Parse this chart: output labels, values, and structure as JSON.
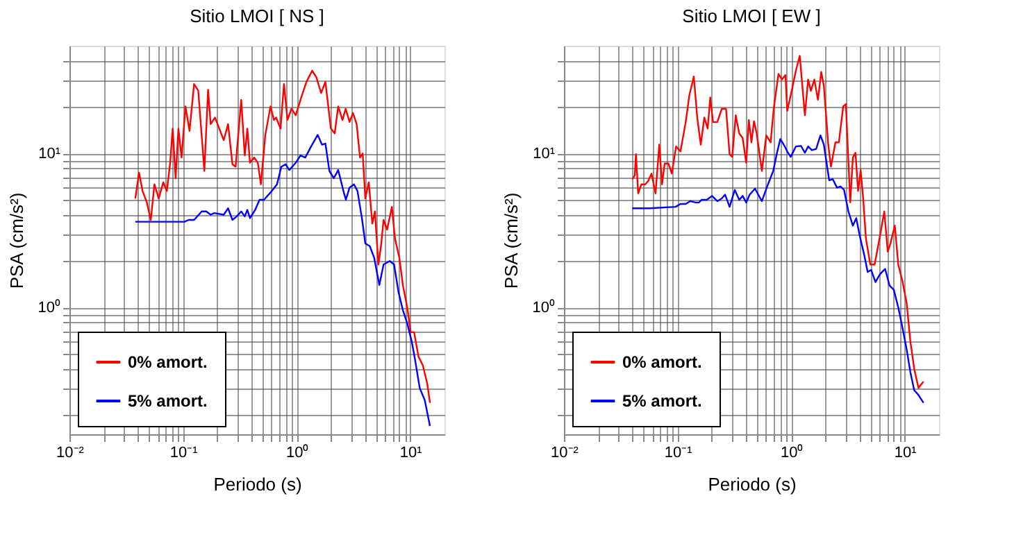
{
  "chart_data": [
    {
      "type": "line",
      "title": "Sitio LMOI [ NS ]",
      "xlabel": "Periodo (s)",
      "ylabel": "PSA (cm/s²)",
      "log": "xy",
      "grid": true,
      "legend": "bottom left",
      "xlim": [
        0.01,
        20
      ],
      "ylim": [
        0.15,
        50
      ],
      "xticks": [
        {
          "value": 0.01,
          "label": "10⁻²"
        },
        {
          "value": 0.02,
          "label": null
        },
        {
          "value": 0.03,
          "label": null
        },
        {
          "value": 0.04,
          "label": null
        },
        {
          "value": 0.05,
          "label": null
        },
        {
          "value": 0.06,
          "label": null
        },
        {
          "value": 0.07,
          "label": null
        },
        {
          "value": 0.08,
          "label": null
        },
        {
          "value": 0.09,
          "label": null
        },
        {
          "value": 0.1,
          "label": "10⁻¹"
        },
        {
          "value": 0.2,
          "label": null
        },
        {
          "value": 0.3,
          "label": null
        },
        {
          "value": 0.4,
          "label": null
        },
        {
          "value": 0.5,
          "label": null
        },
        {
          "value": 0.6,
          "label": null
        },
        {
          "value": 0.7,
          "label": null
        },
        {
          "value": 0.8,
          "label": null
        },
        {
          "value": 0.9,
          "label": null
        },
        {
          "value": 1,
          "label": "10⁰"
        },
        {
          "value": 2,
          "label": null
        },
        {
          "value": 3,
          "label": null
        },
        {
          "value": 4,
          "label": null
        },
        {
          "value": 5,
          "label": null
        },
        {
          "value": 6,
          "label": null
        },
        {
          "value": 7,
          "label": null
        },
        {
          "value": 8,
          "label": null
        },
        {
          "value": 9,
          "label": null
        },
        {
          "value": 10,
          "label": "10¹"
        }
      ],
      "yticks": [
        {
          "value": 0.2,
          "label": null
        },
        {
          "value": 0.3,
          "label": null
        },
        {
          "value": 0.4,
          "label": null
        },
        {
          "value": 0.5,
          "label": null
        },
        {
          "value": 0.6,
          "label": null
        },
        {
          "value": 0.7,
          "label": null
        },
        {
          "value": 0.8,
          "label": null
        },
        {
          "value": 0.9,
          "label": null
        },
        {
          "value": 1,
          "label": "10⁰"
        },
        {
          "value": 2,
          "label": null
        },
        {
          "value": 3,
          "label": null
        },
        {
          "value": 4,
          "label": null
        },
        {
          "value": 5,
          "label": null
        },
        {
          "value": 6,
          "label": null
        },
        {
          "value": 7,
          "label": null
        },
        {
          "value": 8,
          "label": null
        },
        {
          "value": 9,
          "label": null
        },
        {
          "value": 10,
          "label": "10¹"
        },
        {
          "value": 20,
          "label": null
        },
        {
          "value": 30,
          "label": null
        },
        {
          "value": 40,
          "label": null
        }
      ],
      "series": [
        {
          "name": "0% amort.",
          "color": "#ff0000",
          "x": [
            0.038,
            0.041,
            0.044,
            0.048,
            0.052,
            0.056,
            0.061,
            0.067,
            0.072,
            0.077,
            0.081,
            0.086,
            0.091,
            0.097,
            0.105,
            0.114,
            0.125,
            0.136,
            0.154,
            0.166,
            0.175,
            0.191,
            0.228,
            0.249,
            0.272,
            0.29,
            0.325,
            0.349,
            0.368,
            0.388,
            0.423,
            0.455,
            0.484,
            0.529,
            0.588,
            0.631,
            0.659,
            0.721,
            0.773,
            0.83,
            0.899,
            0.982,
            1.08,
            1.22,
            1.37,
            1.49,
            1.64,
            1.79,
            2.0,
            2.16,
            2.32,
            2.53,
            2.7,
            2.92,
            3.13,
            3.37,
            3.61,
            3.81,
            4.02,
            4.31,
            4.63,
            4.88,
            5.24,
            5.52,
            5.82,
            6.25,
            6.89,
            7.33,
            8.01,
            8.6,
            9.4,
            10.1,
            10.8,
            11.8,
            12.9,
            14.1,
            14.9
          ],
          "values": [
            5.1,
            7.5,
            5.7,
            4.8,
            3.7,
            6.3,
            5.1,
            6.5,
            5.7,
            8.7,
            14.5,
            6.9,
            14.5,
            9.4,
            20.2,
            14.0,
            28.2,
            25.5,
            7.7,
            25.9,
            15.5,
            17.1,
            12.2,
            15.5,
            8.5,
            8.2,
            22.3,
            9.7,
            14.5,
            8.7,
            9.4,
            8.7,
            6.3,
            13.1,
            20.2,
            16.5,
            17.1,
            14.5,
            28.2,
            16.5,
            19.5,
            17.7,
            22.3,
            29.2,
            34.5,
            31.2,
            24.7,
            29.2,
            14.5,
            13.5,
            20.2,
            16.5,
            19.5,
            16.0,
            18.3,
            15.5,
            9.4,
            10,
            5.1,
            6.5,
            3.5,
            4.2,
            1.9,
            2.5,
            3.7,
            3.2,
            4.5,
            2.8,
            2.1,
            1.4,
            1.0,
            0.69,
            0.69,
            0.48,
            0.42,
            0.32,
            0.24
          ]
        },
        {
          "name": "5% amort.",
          "color": "#0000ff",
          "x": [
            0.038,
            0.055,
            0.103,
            0.112,
            0.125,
            0.146,
            0.16,
            0.175,
            0.188,
            0.228,
            0.249,
            0.272,
            0.297,
            0.325,
            0.349,
            0.368,
            0.388,
            0.431,
            0.471,
            0.515,
            0.604,
            0.671,
            0.733,
            0.801,
            0.86,
            0.982,
            1.08,
            1.19,
            1.34,
            1.53,
            1.67,
            1.79,
            1.94,
            2.12,
            2.32,
            2.58,
            2.71,
            2.92,
            3.19,
            3.43,
            3.75,
            4.02,
            4.4,
            4.81,
            5.34,
            5.82,
            6.59,
            7.2,
            7.87,
            8.6,
            9.4,
            10.3,
            11.0,
            12.1,
            13.4,
            14.9
          ],
          "values": [
            3.6,
            3.6,
            3.6,
            3.7,
            3.7,
            4.2,
            4.2,
            4.0,
            4.1,
            4.0,
            4.4,
            3.7,
            3.9,
            4.2,
            3.9,
            4.3,
            3.8,
            4.3,
            5.0,
            5.0,
            5.7,
            6.3,
            8.2,
            8.5,
            7.8,
            8.7,
            9.7,
            9.4,
            11.1,
            13.2,
            11.4,
            11.6,
            7.7,
            6.9,
            7.8,
            5.7,
            5.0,
            6.0,
            6.3,
            5.7,
            3.8,
            2.6,
            2.5,
            2.1,
            1.4,
            1.9,
            2.0,
            1.9,
            1.26,
            0.96,
            0.79,
            0.6,
            0.46,
            0.3,
            0.25,
            0.17
          ]
        }
      ]
    },
    {
      "type": "line",
      "title": "Sitio LMOI [ EW ]",
      "xlabel": "Periodo (s)",
      "ylabel": "PSA (cm/s²)",
      "log": "xy",
      "grid": true,
      "legend": "bottom left",
      "xlim": [
        0.01,
        20
      ],
      "ylim": [
        0.15,
        50
      ],
      "xticks": [
        {
          "value": 0.01,
          "label": "10⁻²"
        },
        {
          "value": 0.02,
          "label": null
        },
        {
          "value": 0.03,
          "label": null
        },
        {
          "value": 0.04,
          "label": null
        },
        {
          "value": 0.05,
          "label": null
        },
        {
          "value": 0.06,
          "label": null
        },
        {
          "value": 0.07,
          "label": null
        },
        {
          "value": 0.08,
          "label": null
        },
        {
          "value": 0.09,
          "label": null
        },
        {
          "value": 0.1,
          "label": "10⁻¹"
        },
        {
          "value": 0.2,
          "label": null
        },
        {
          "value": 0.3,
          "label": null
        },
        {
          "value": 0.4,
          "label": null
        },
        {
          "value": 0.5,
          "label": null
        },
        {
          "value": 0.6,
          "label": null
        },
        {
          "value": 0.7,
          "label": null
        },
        {
          "value": 0.8,
          "label": null
        },
        {
          "value": 0.9,
          "label": null
        },
        {
          "value": 1,
          "label": "10⁰"
        },
        {
          "value": 2,
          "label": null
        },
        {
          "value": 3,
          "label": null
        },
        {
          "value": 4,
          "label": null
        },
        {
          "value": 5,
          "label": null
        },
        {
          "value": 6,
          "label": null
        },
        {
          "value": 7,
          "label": null
        },
        {
          "value": 8,
          "label": null
        },
        {
          "value": 9,
          "label": null
        },
        {
          "value": 10,
          "label": "10¹"
        }
      ],
      "yticks": [
        {
          "value": 0.2,
          "label": null
        },
        {
          "value": 0.3,
          "label": null
        },
        {
          "value": 0.4,
          "label": null
        },
        {
          "value": 0.5,
          "label": null
        },
        {
          "value": 0.6,
          "label": null
        },
        {
          "value": 0.7,
          "label": null
        },
        {
          "value": 0.8,
          "label": null
        },
        {
          "value": 0.9,
          "label": null
        },
        {
          "value": 1,
          "label": "10⁰"
        },
        {
          "value": 2,
          "label": null
        },
        {
          "value": 3,
          "label": null
        },
        {
          "value": 4,
          "label": null
        },
        {
          "value": 5,
          "label": null
        },
        {
          "value": 6,
          "label": null
        },
        {
          "value": 7,
          "label": null
        },
        {
          "value": 8,
          "label": null
        },
        {
          "value": 9,
          "label": null
        },
        {
          "value": 10,
          "label": "10¹"
        },
        {
          "value": 20,
          "label": null
        },
        {
          "value": 30,
          "label": null
        },
        {
          "value": 40,
          "label": null
        }
      ],
      "series": [
        {
          "name": "0% amort.",
          "color": "#ff0000",
          "x": [
            0.04,
            0.042,
            0.043,
            0.045,
            0.048,
            0.052,
            0.055,
            0.059,
            0.064,
            0.069,
            0.073,
            0.077,
            0.083,
            0.089,
            0.097,
            0.106,
            0.118,
            0.127,
            0.139,
            0.149,
            0.16,
            0.172,
            0.184,
            0.194,
            0.205,
            0.224,
            0.245,
            0.267,
            0.287,
            0.303,
            0.325,
            0.349,
            0.374,
            0.402,
            0.424,
            0.447,
            0.471,
            0.497,
            0.552,
            0.604,
            0.659,
            0.702,
            0.773,
            0.83,
            0.891,
            0.923,
            1.01,
            1.1,
            1.19,
            1.32,
            1.41,
            1.49,
            1.6,
            1.72,
            1.84,
            1.94,
            2.12,
            2.24,
            2.45,
            2.63,
            2.87,
            3.03,
            3.31,
            3.49,
            3.68,
            3.88,
            4.09,
            4.31,
            4.55,
            4.97,
            5.43,
            6.04,
            6.6,
            7.08,
            7.47,
            8.17,
            8.76,
            9.57,
            10.4,
            11.2,
            12.1,
            13.2,
            14.6
          ],
          "values": [
            6.8,
            7.2,
            9.9,
            5.5,
            6.3,
            6.3,
            6.6,
            7.4,
            5.5,
            11.4,
            6.3,
            8.6,
            8.6,
            7.4,
            11.1,
            10.3,
            16.0,
            23.9,
            31.6,
            17.1,
            11.4,
            17.1,
            14.5,
            23.1,
            16.0,
            16.0,
            19.5,
            19.5,
            9.9,
            9.5,
            17.7,
            13.5,
            12.6,
            8.7,
            16.5,
            11.8,
            16.2,
            13.5,
            7.7,
            13.1,
            11.8,
            19.5,
            32.9,
            30.2,
            32.3,
            18.9,
            25.5,
            34.5,
            43.0,
            17.7,
            30.2,
            25.5,
            30.2,
            22.3,
            33.8,
            27.3,
            11.4,
            8.2,
            11.8,
            11.8,
            20.2,
            20.9,
            4.8,
            9.4,
            10.1,
            5.7,
            7.8,
            5.0,
            2.8,
            1.9,
            1.9,
            2.9,
            4.2,
            2.3,
            2.6,
            3.4,
            1.9,
            1.46,
            1.06,
            0.6,
            0.4,
            0.3,
            0.33
          ]
        },
        {
          "name": "5% amort.",
          "color": "#0000ff",
          "x": [
            0.04,
            0.056,
            0.096,
            0.106,
            0.118,
            0.129,
            0.144,
            0.154,
            0.163,
            0.181,
            0.201,
            0.224,
            0.245,
            0.262,
            0.287,
            0.319,
            0.349,
            0.374,
            0.402,
            0.431,
            0.48,
            0.506,
            0.552,
            0.625,
            0.695,
            0.746,
            0.802,
            0.861,
            0.923,
            0.991,
            1.1,
            1.22,
            1.32,
            1.41,
            1.52,
            1.66,
            1.81,
            1.94,
            2.16,
            2.32,
            2.53,
            2.72,
            2.92,
            3.19,
            3.49,
            3.74,
            4.02,
            4.39,
            4.71,
            5.06,
            5.52,
            6.04,
            6.71,
            7.33,
            8.01,
            8.76,
            9.57,
            10.4,
            11.2,
            12.1,
            13.2,
            14.6
          ],
          "values": [
            4.4,
            4.4,
            4.5,
            4.7,
            4.7,
            4.9,
            4.8,
            4.8,
            5.0,
            5.0,
            5.3,
            4.9,
            5.1,
            5.4,
            4.5,
            5.8,
            5.0,
            5.3,
            4.8,
            5.4,
            5.9,
            5.5,
            4.9,
            6.3,
            7.7,
            9.9,
            12.4,
            11.4,
            10.3,
            9.5,
            11.1,
            11.2,
            10.1,
            11.1,
            10.5,
            10.7,
            13.1,
            11.4,
            6.7,
            6.8,
            6.0,
            6.1,
            5.8,
            4.2,
            3.4,
            3.8,
            2.9,
            2.2,
            1.7,
            1.75,
            1.46,
            1.64,
            1.78,
            1.39,
            1.3,
            1.0,
            0.73,
            0.53,
            0.38,
            0.29,
            0.27,
            0.24
          ]
        }
      ]
    }
  ]
}
